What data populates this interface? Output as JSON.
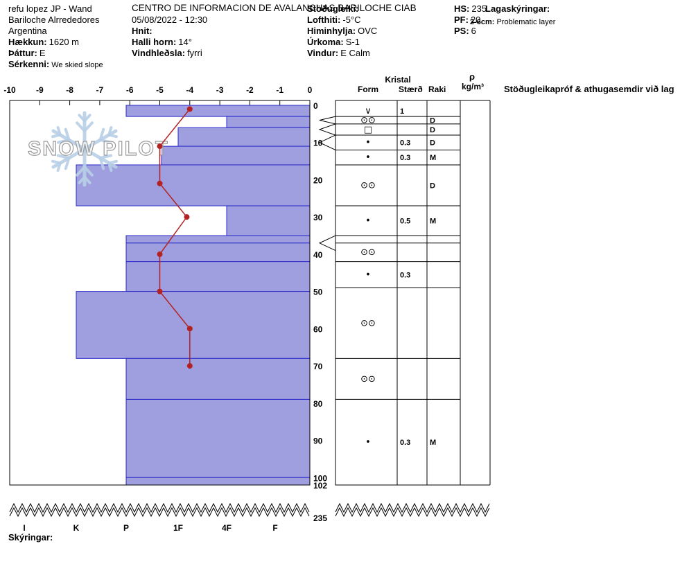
{
  "header": {
    "site": "refu lopez JP - Wand",
    "region": "Bariloche Alrrededores",
    "country": "Argentina",
    "elevation_label": "Hækkun:",
    "elevation": "1620 m",
    "aspect_label": "Þáttur:",
    "aspect": "E",
    "notes_label": "Sérkenni:",
    "notes": "We skied slope",
    "organization": "CENTRO DE INFORMACION DE AVALANCHAS BARILOCHE CIAB",
    "datetime": "05/08/2022 - 12:30",
    "coords_label": "Hnit:",
    "slope_angle_label": "Halli horn:",
    "slope_angle": "14°",
    "wind_loading_label": "Vindhleðsla:",
    "wind_loading": "fyrri",
    "stability_label": "Stöðugleiki:",
    "air_temp_label": "Lofthiti:",
    "air_temp": "-5°C",
    "sky_label": "Himinhylja:",
    "sky": "OVC",
    "precip_label": "Úrkoma:",
    "precip": "S-1",
    "wind_label": "Vindur:",
    "wind": "E Calm",
    "hs_label": "HS:",
    "hs": "235",
    "pf_label": "PF:",
    "pf": "20",
    "ps_label": "PS:",
    "ps": "6",
    "layer_notes_label": "Lagaskýringar:",
    "layer_note_key": "2-6cm:",
    "layer_note_value": "Problematic layer"
  },
  "watermark": {
    "text": "SNOW PILOT"
  },
  "chart_data": {
    "type": "snow-profile",
    "temperature_axis": {
      "unit": "°C",
      "range": [
        -10,
        0
      ],
      "ticks": [
        -10,
        -9,
        -8,
        -7,
        -6,
        -5,
        -4,
        -3,
        -2,
        -1,
        0
      ]
    },
    "depth_axis": {
      "unit": "cm",
      "range": [
        0,
        102
      ],
      "ticks": [
        0,
        10,
        20,
        30,
        40,
        50,
        60,
        70,
        80,
        90,
        100,
        102
      ],
      "total_snow_height": "235"
    },
    "hardness_axis": {
      "labels": [
        "I",
        "K",
        "P",
        "1F",
        "4F",
        "F"
      ]
    },
    "layers": [
      {
        "top_cm": 0,
        "bottom_cm": 3,
        "hardness": "P"
      },
      {
        "top_cm": 3,
        "bottom_cm": 6,
        "hardness": "4F"
      },
      {
        "top_cm": 6,
        "bottom_cm": 11,
        "hardness": "1F"
      },
      {
        "top_cm": 11,
        "bottom_cm": 16,
        "hardness": "1F+"
      },
      {
        "top_cm": 16,
        "bottom_cm": 27,
        "hardness": "K"
      },
      {
        "top_cm": 27,
        "bottom_cm": 35,
        "hardness": "4F"
      },
      {
        "top_cm": 35,
        "bottom_cm": 37,
        "hardness": "P"
      },
      {
        "top_cm": 37,
        "bottom_cm": 42,
        "hardness": "P"
      },
      {
        "top_cm": 42,
        "bottom_cm": 50,
        "hardness": "P"
      },
      {
        "top_cm": 50,
        "bottom_cm": 68,
        "hardness": "K"
      },
      {
        "top_cm": 68,
        "bottom_cm": 79,
        "hardness": "P"
      },
      {
        "top_cm": 79,
        "bottom_cm": 100,
        "hardness": "P"
      },
      {
        "top_cm": 100,
        "bottom_cm": 102,
        "hardness": "P"
      }
    ],
    "temperature_profile": [
      {
        "depth_cm": 1,
        "temp_c": -4
      },
      {
        "depth_cm": 11,
        "temp_c": -5
      },
      {
        "depth_cm": 21,
        "temp_c": -5
      },
      {
        "depth_cm": 30,
        "temp_c": -4.1
      },
      {
        "depth_cm": 40,
        "temp_c": -5
      },
      {
        "depth_cm": 50,
        "temp_c": -5
      },
      {
        "depth_cm": 60,
        "temp_c": -4
      },
      {
        "depth_cm": 70,
        "temp_c": -4
      }
    ],
    "colors": {
      "layer_fill": "#9f9fe0",
      "layer_border": "#2929c8",
      "temp_line": "#b22222",
      "watermark_blue": "#b8cfe6",
      "watermark_gray": "#9a9a9a"
    }
  },
  "crystal_table": {
    "group_header": "Kristal",
    "columns": [
      "Form",
      "Stærð",
      "Raki"
    ],
    "density_symbol": "ρ",
    "density_unit": "kg/m³",
    "comments_header": "Stöðugleikapróf & athugasemdir við lag",
    "rows": [
      {
        "top_cm": 0,
        "bottom_cm": 3,
        "form": "∨",
        "size": "1",
        "moisture": ""
      },
      {
        "top_cm": 3,
        "bottom_cm": 5,
        "form": "⊙⊙",
        "size": "",
        "moisture": "D"
      },
      {
        "top_cm": 5,
        "bottom_cm": 8,
        "form": "□",
        "size": "",
        "moisture": "D"
      },
      {
        "top_cm": 8,
        "bottom_cm": 12,
        "form": "•",
        "size": "0.3",
        "moisture": "D"
      },
      {
        "top_cm": 12,
        "bottom_cm": 16,
        "form": "•",
        "size": "0.3",
        "moisture": "M"
      },
      {
        "top_cm": 16,
        "bottom_cm": 27,
        "form": "⊙⊙",
        "size": "",
        "moisture": "D"
      },
      {
        "top_cm": 27,
        "bottom_cm": 35,
        "form": "•",
        "size": "0.5",
        "moisture": "M"
      },
      {
        "top_cm": 35,
        "bottom_cm": 37,
        "form": "",
        "size": "",
        "moisture": ""
      },
      {
        "top_cm": 37,
        "bottom_cm": 42,
        "form": "⊙⊙",
        "size": "",
        "moisture": ""
      },
      {
        "top_cm": 42,
        "bottom_cm": 49,
        "form": "•",
        "size": "0.3",
        "moisture": ""
      },
      {
        "top_cm": 49,
        "bottom_cm": 68,
        "form": "⊙⊙",
        "size": "",
        "moisture": ""
      },
      {
        "top_cm": 68,
        "bottom_cm": 79,
        "form": "⊙⊙",
        "size": "",
        "moisture": ""
      },
      {
        "top_cm": 79,
        "bottom_cm": 102,
        "form": "•",
        "size": "0.3",
        "moisture": "M"
      }
    ],
    "layer_markers": [
      {
        "from_cm": 3,
        "to_cm": 5
      },
      {
        "from_cm": 5,
        "to_cm": 8
      },
      {
        "from_cm": 8,
        "to_cm": 12
      },
      {
        "from_cm": 35,
        "to_cm": 39
      }
    ]
  },
  "footer": {
    "legend_label": "Skýringar:"
  }
}
